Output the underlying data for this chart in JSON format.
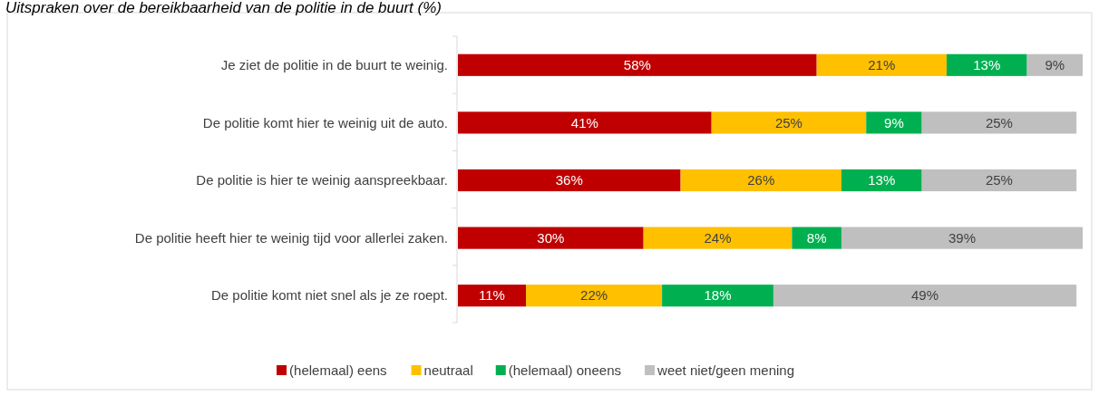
{
  "chart_data": {
    "type": "bar",
    "orientation": "horizontal",
    "stacked": true,
    "title": "Uitspraken over de bereikbaarheid van de politie in de buurt (%)",
    "categories": [
      "Je ziet de politie in de buurt te weinig.",
      "De politie komt hier te weinig uit de auto.",
      "De politie is hier te weinig aanspreekbaar.",
      "De politie heeft hier te weinig tijd voor allerlei zaken.",
      "De politie komt niet snel als je ze roept."
    ],
    "series": [
      {
        "name": "(helemaal) eens",
        "color": "#c00000",
        "values": [
          58,
          41,
          36,
          30,
          11
        ],
        "value_labels": [
          "58%",
          "41%",
          "36%",
          "30%",
          "11%"
        ]
      },
      {
        "name": "neutraal",
        "color": "#ffc000",
        "values": [
          21,
          25,
          26,
          24,
          22
        ],
        "value_labels": [
          "21%",
          "25%",
          "26%",
          "24%",
          "22%"
        ]
      },
      {
        "name": "(helemaal) oneens",
        "color": "#00b050",
        "values": [
          13,
          9,
          13,
          8,
          18
        ],
        "value_labels": [
          "13%",
          "9%",
          "13%",
          "8%",
          "18%"
        ]
      },
      {
        "name": "weet niet/geen mening",
        "color": "#bfbfbf",
        "values": [
          9,
          25,
          25,
          39,
          49
        ],
        "value_labels": [
          "9%",
          "25%",
          "25%",
          "39%",
          "49%"
        ]
      }
    ],
    "tick_labels": "y",
    "legend": "bottom"
  }
}
